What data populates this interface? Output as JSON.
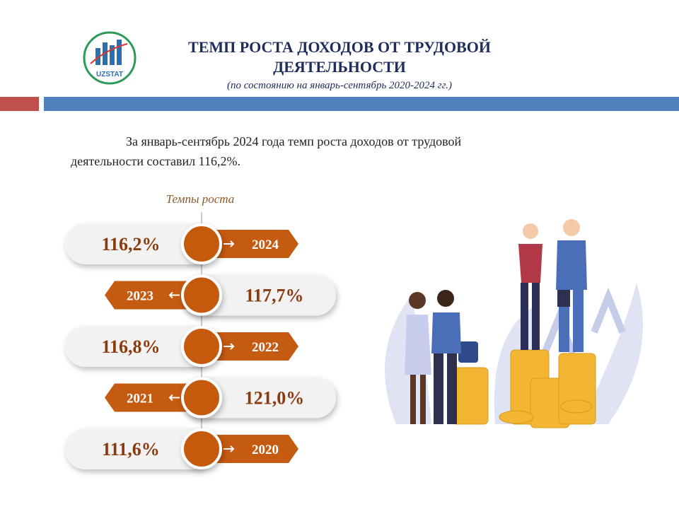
{
  "header": {
    "logo": "UZSTAT",
    "title_line1": "ТЕМП РОСТА ДОХОДОВ ОТ ТРУДОВОЙ",
    "title_line2": "ДЕЯТЕЛЬНОСТИ",
    "subtitle": "(по состоянию на январь-сентябрь 2020-2024 гг.)"
  },
  "summary": {
    "line1": "За январь-сентябрь 2024 года темп роста доходов от трудовой",
    "line2": "деятельности составил 116,2%."
  },
  "timeline": {
    "title": "Темпы роста",
    "items": [
      {
        "value": "116,2%",
        "year": "2024"
      },
      {
        "value": "117,7%",
        "year": "2023"
      },
      {
        "value": "116,8%",
        "year": "2022"
      },
      {
        "value": "121,0%",
        "year": "2021"
      },
      {
        "value": "111,6%",
        "year": "2020"
      }
    ]
  }
}
